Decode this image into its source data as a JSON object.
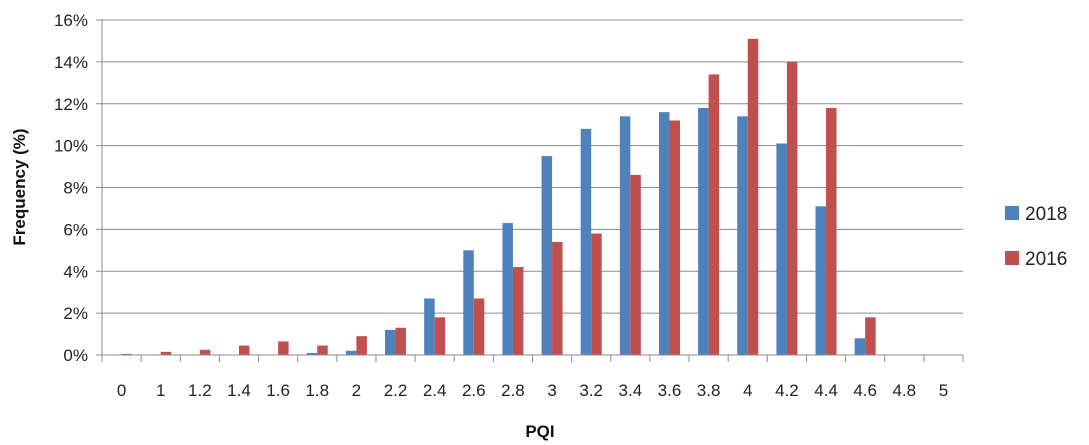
{
  "chart_data": {
    "type": "bar",
    "xlabel": "PQI",
    "ylabel": "Frequency (%)",
    "categories": [
      "0",
      "1",
      "1.2",
      "1.4",
      "1.6",
      "1.8",
      "2",
      "2.2",
      "2.4",
      "2.6",
      "2.8",
      "3",
      "3.2",
      "3.4",
      "3.6",
      "3.8",
      "4",
      "4.2",
      "4.4",
      "4.6",
      "4.8",
      "5"
    ],
    "ylim": [
      0,
      16
    ],
    "yticks": [
      0,
      2,
      4,
      6,
      8,
      10,
      12,
      14,
      16
    ],
    "ytick_labels": [
      "0%",
      "2%",
      "4%",
      "6%",
      "8%",
      "10%",
      "12%",
      "14%",
      "16%"
    ],
    "grid": true,
    "legend_position": "right",
    "series": [
      {
        "name": "2018",
        "color": "#4F81BD",
        "values": [
          0,
          0,
          0,
          0,
          0,
          0.1,
          0.2,
          1.2,
          2.7,
          5.0,
          6.3,
          9.5,
          10.8,
          11.4,
          11.6,
          11.8,
          11.4,
          10.1,
          7.1,
          0.8,
          0,
          0
        ]
      },
      {
        "name": "2016",
        "color": "#C0504D",
        "values": [
          0.05,
          0.15,
          0.25,
          0.45,
          0.65,
          0.45,
          0.9,
          1.3,
          1.8,
          2.7,
          4.2,
          5.4,
          5.8,
          8.6,
          11.2,
          13.4,
          15.1,
          14.0,
          11.8,
          1.8,
          0,
          0
        ]
      }
    ]
  }
}
